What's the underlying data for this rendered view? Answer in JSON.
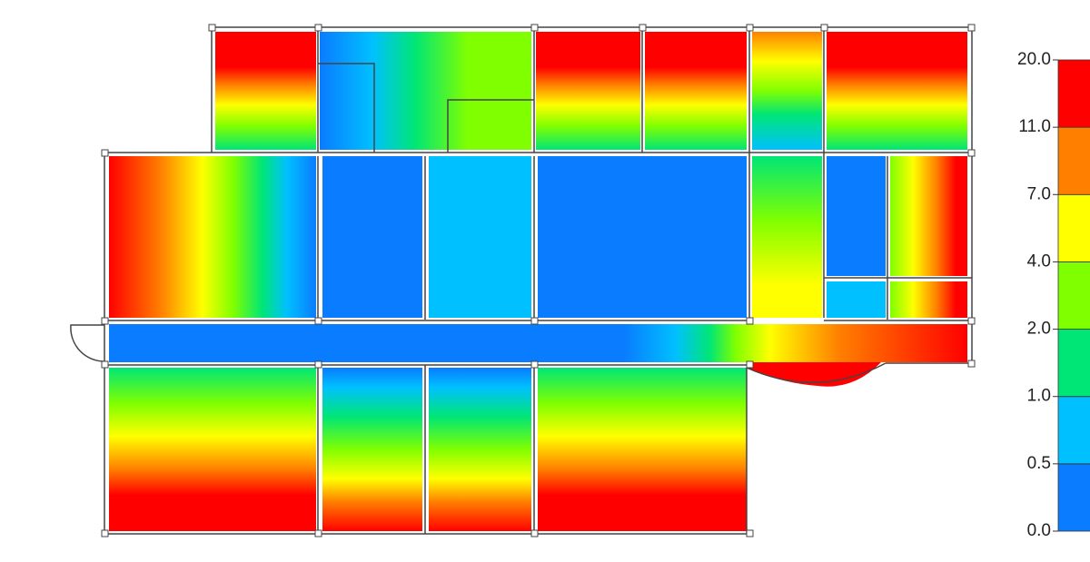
{
  "chart_data": {
    "type": "contour",
    "colorbar": {
      "ticks": [
        {
          "value": 0,
          "label": "0.0"
        },
        {
          "value": 0.5,
          "label": "0.5"
        },
        {
          "value": 1,
          "label": "1.0"
        },
        {
          "value": 2,
          "label": "2.0"
        },
        {
          "value": 4,
          "label": "4.0"
        },
        {
          "value": 7,
          "label": "7.0"
        },
        {
          "value": 11,
          "label": "11.0"
        },
        {
          "value": 20,
          "label": "20.0"
        }
      ],
      "colors": [
        "#0a7cff",
        "#00c0ff",
        "#00e676",
        "#80ff00",
        "#ffff00",
        "#ff8000",
        "#ff0000"
      ]
    }
  }
}
